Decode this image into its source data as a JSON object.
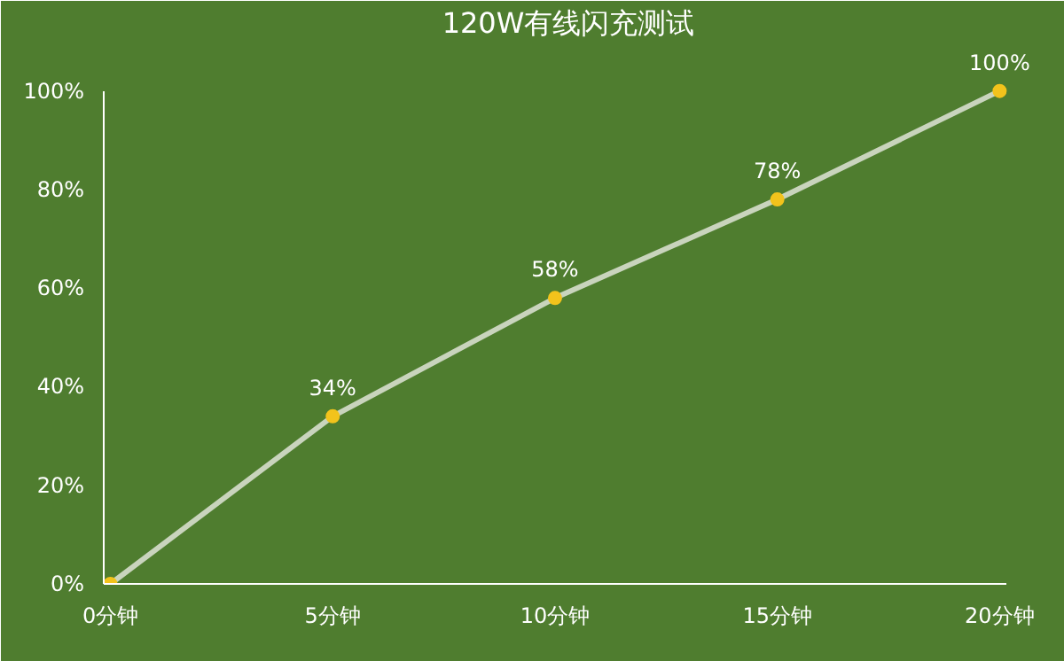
{
  "chart_data": {
    "type": "line",
    "title": "120W有线闪充测试",
    "categories": [
      "0分钟",
      "5分钟",
      "10分钟",
      "15分钟",
      "20分钟"
    ],
    "series": [
      {
        "color": "#c9d4bd",
        "values": [
          0,
          34,
          58,
          78,
          100
        ],
        "value_labels": [
          null,
          "34%",
          "58%",
          "78%",
          "100%"
        ]
      }
    ],
    "ylim": [
      0,
      100
    ],
    "yticks": [
      {
        "value": 0,
        "label": "0%"
      },
      {
        "value": 20,
        "label": "20%"
      },
      {
        "value": 40,
        "label": "40%"
      },
      {
        "value": 60,
        "label": "60%"
      },
      {
        "value": 80,
        "label": "80%"
      },
      {
        "value": 100,
        "label": "100%"
      }
    ],
    "grid": false,
    "marker": "circle",
    "line_style": "solid"
  }
}
